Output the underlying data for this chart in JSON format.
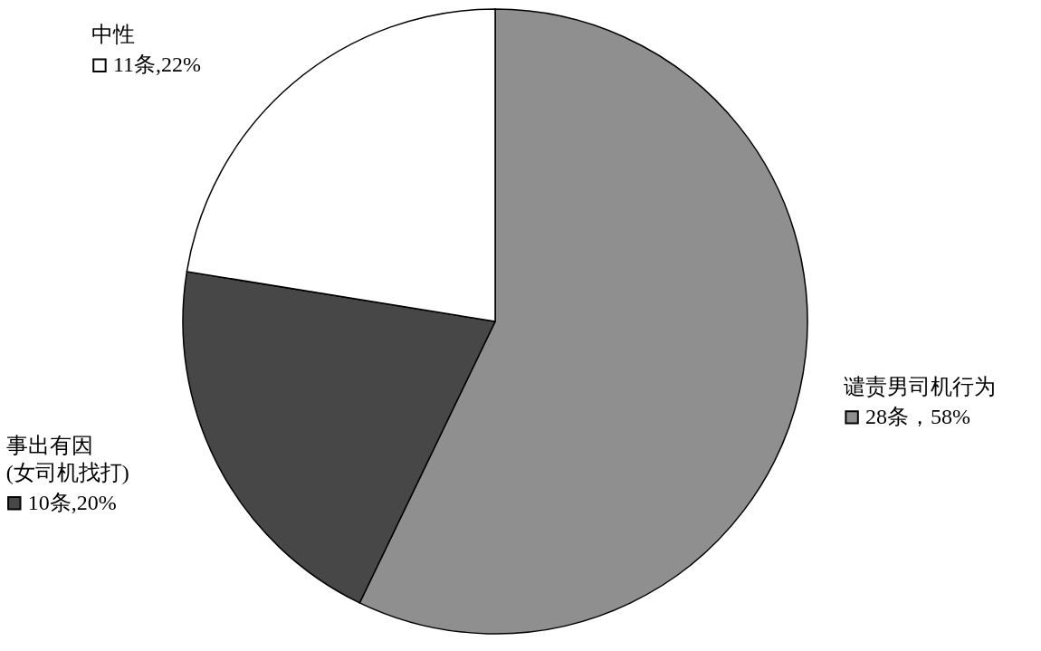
{
  "chart_data": {
    "type": "pie",
    "categories": [
      "谴责男司机行为",
      "事出有因\n(女司机找打)",
      "中性"
    ],
    "values": [
      28,
      10,
      11
    ],
    "colors": [
      "#8f8f8f",
      "#474747",
      "#ffffff"
    ],
    "value_labels": [
      "28条，58%",
      "10条,20%",
      "11条,22%"
    ]
  }
}
